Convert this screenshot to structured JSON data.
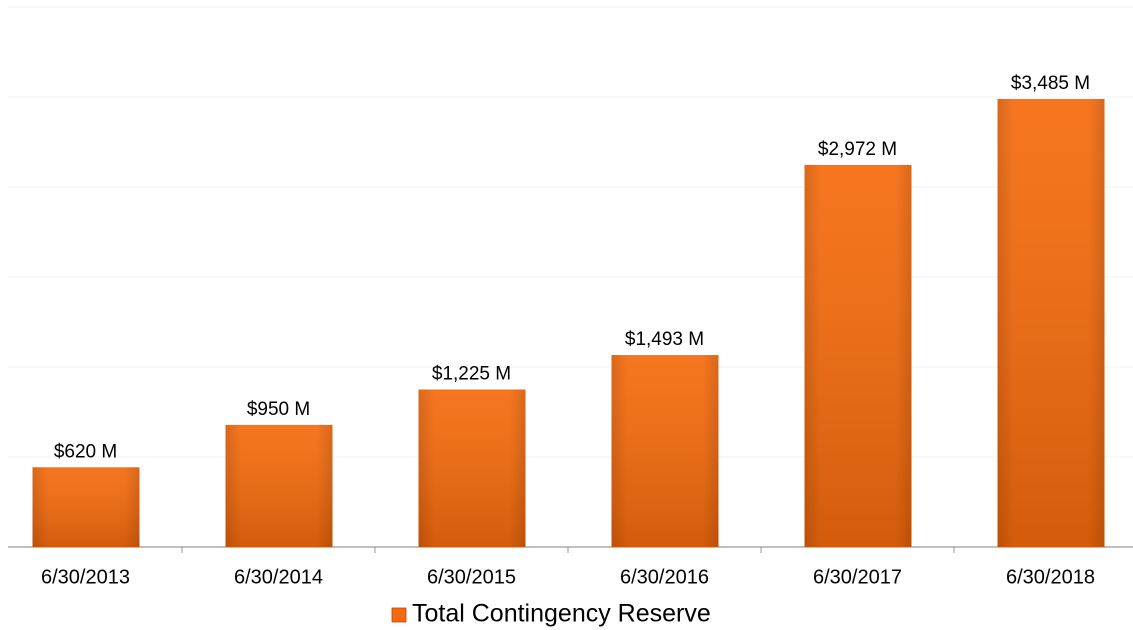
{
  "chart_data": {
    "type": "bar",
    "categories": [
      "6/30/2013",
      "6/30/2014",
      "6/30/2015",
      "6/30/2016",
      "6/30/2017",
      "6/30/2018"
    ],
    "series": [
      {
        "name": "Total Contingency Reserve",
        "color": "#f56a0c",
        "values": [
          620,
          950,
          1225,
          1493,
          2972,
          3485
        ],
        "value_labels": [
          "$620 M",
          "$950 M",
          "$1,225 M",
          "$1,493 M",
          "$2,972 M",
          "$3,485 M"
        ]
      }
    ],
    "ylim": [
      0,
      4200
    ],
    "yticks": [
      0,
      700,
      1400,
      2100,
      2800,
      3500,
      4200
    ],
    "grid": true,
    "legend": "bottom"
  }
}
